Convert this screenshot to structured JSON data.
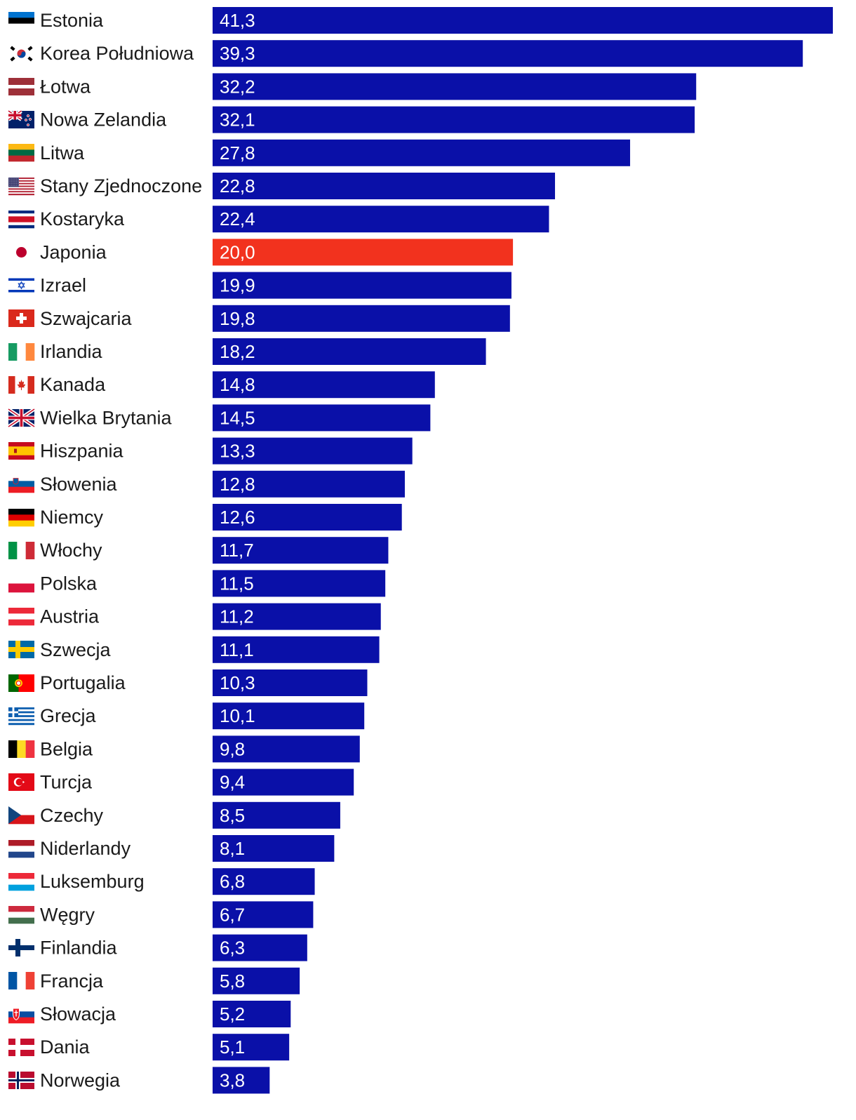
{
  "chart_data": {
    "type": "bar",
    "orientation": "horizontal",
    "title": "",
    "xlabel": "",
    "ylabel": "",
    "xlim": [
      0,
      41.3
    ],
    "grid": false,
    "legend": "none",
    "colors": {
      "default": "#0a10a8",
      "highlight": "#f2321e"
    },
    "highlight": "Japonia",
    "categories": [
      "Estonia",
      "Korea Południowa",
      "Łotwa",
      "Nowa Zelandia",
      "Litwa",
      "Stany Zjednoczone",
      "Kostaryka",
      "Japonia",
      "Izrael",
      "Szwajcaria",
      "Irlandia",
      "Kanada",
      "Wielka Brytania",
      "Hiszpania",
      "Słowenia",
      "Niemcy",
      "Włochy",
      "Polska",
      "Austria",
      "Szwecja",
      "Portugalia",
      "Grecja",
      "Belgia",
      "Turcja",
      "Czechy",
      "Niderlandy",
      "Luksemburg",
      "Węgry",
      "Finlandia",
      "Francja",
      "Słowacja",
      "Dania",
      "Norwegia"
    ],
    "flags": [
      "estonia-flag-icon",
      "south-korea-flag-icon",
      "latvia-flag-icon",
      "new-zealand-flag-icon",
      "lithuania-flag-icon",
      "usa-flag-icon",
      "costa-rica-flag-icon",
      "japan-flag-icon",
      "israel-flag-icon",
      "switzerland-flag-icon",
      "ireland-flag-icon",
      "canada-flag-icon",
      "uk-flag-icon",
      "spain-flag-icon",
      "slovenia-flag-icon",
      "germany-flag-icon",
      "italy-flag-icon",
      "poland-flag-icon",
      "austria-flag-icon",
      "sweden-flag-icon",
      "portugal-flag-icon",
      "greece-flag-icon",
      "belgium-flag-icon",
      "turkey-flag-icon",
      "czechia-flag-icon",
      "netherlands-flag-icon",
      "luxembourg-flag-icon",
      "hungary-flag-icon",
      "finland-flag-icon",
      "france-flag-icon",
      "slovakia-flag-icon",
      "denmark-flag-icon",
      "norway-flag-icon"
    ],
    "values": [
      41.3,
      39.3,
      32.2,
      32.1,
      27.8,
      22.8,
      22.4,
      20.0,
      19.9,
      19.8,
      18.2,
      14.8,
      14.5,
      13.3,
      12.8,
      12.6,
      11.7,
      11.5,
      11.2,
      11.1,
      10.3,
      10.1,
      9.8,
      9.4,
      8.5,
      8.1,
      6.8,
      6.7,
      6.3,
      5.8,
      5.2,
      5.1,
      3.8
    ],
    "value_labels": [
      "41,3",
      "39,3",
      "32,2",
      "32,1",
      "27,8",
      "22,8",
      "22,4",
      "20,0",
      "19,9",
      "19,8",
      "18,2",
      "14,8",
      "14,5",
      "13,3",
      "12,8",
      "12,6",
      "11,7",
      "11,5",
      "11,2",
      "11,1",
      "10,3",
      "10,1",
      "9,8",
      "9,4",
      "8,5",
      "8,1",
      "6,8",
      "6,7",
      "6,3",
      "5,8",
      "5,2",
      "5,1",
      "3,8"
    ]
  }
}
